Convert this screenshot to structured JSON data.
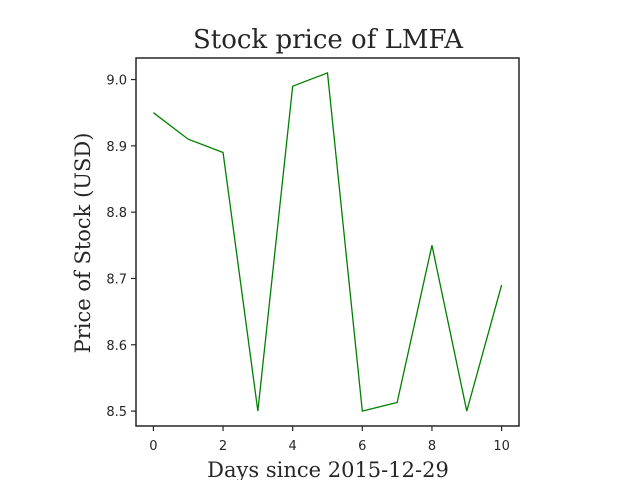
{
  "chart_data": {
    "type": "line",
    "title": "Stock price of LMFA",
    "xlabel": "Days since 2015-12-29",
    "ylabel": "Price of Stock (USD)",
    "x": [
      0,
      1,
      2,
      3,
      4,
      5,
      6,
      7,
      8,
      9,
      10
    ],
    "series": [
      {
        "values": [
          8.95,
          8.91,
          8.89,
          8.5,
          8.99,
          9.01,
          8.5,
          8.513,
          8.75,
          8.5,
          8.69
        ],
        "color": "#008000"
      }
    ],
    "xlim": [
      -0.5,
      10.5
    ],
    "ylim": [
      8.4775,
      9.0325
    ],
    "xticks": [
      0,
      2,
      4,
      6,
      8,
      10
    ],
    "yticks": [
      8.5,
      8.6,
      8.7,
      8.8,
      8.9,
      9.0
    ],
    "xtick_labels": [
      "0",
      "2",
      "4",
      "6",
      "8",
      "10"
    ],
    "ytick_labels": [
      "8.5",
      "8.6",
      "8.7",
      "8.8",
      "8.9",
      "9.0"
    ],
    "grid": false,
    "legend": false
  }
}
